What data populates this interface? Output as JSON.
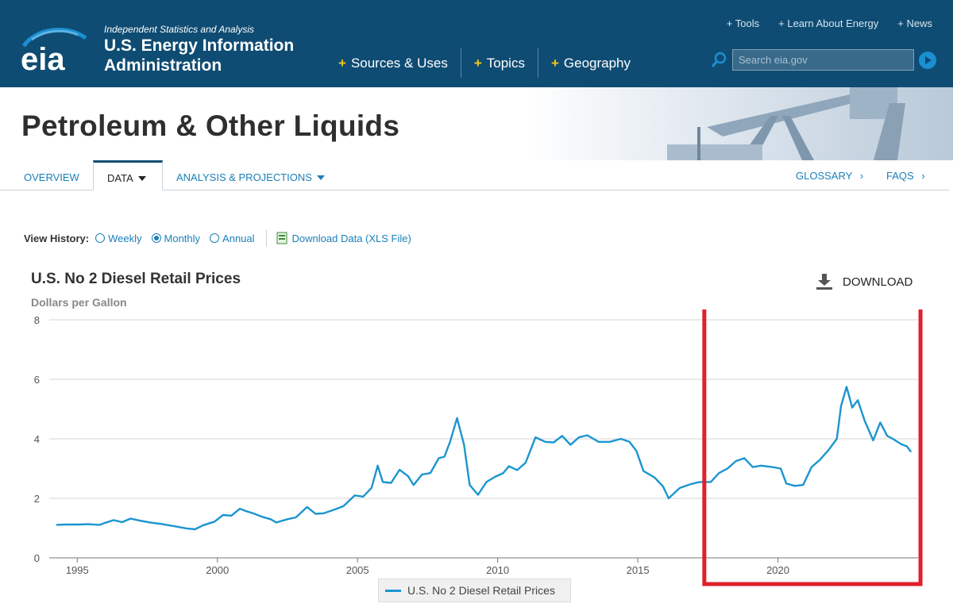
{
  "header": {
    "tagline": "Independent Statistics and Analysis",
    "agency_line1": "U.S. Energy Information",
    "agency_line2": "Administration",
    "logo_text": "eia",
    "nav": [
      "Sources & Uses",
      "Topics",
      "Geography"
    ],
    "util_nav": [
      "Tools",
      "Learn About Energy",
      "News"
    ],
    "search_placeholder": "Search eia.gov"
  },
  "banner": {
    "title": "Petroleum & Other Liquids"
  },
  "subnav": {
    "overview": "OVERVIEW",
    "data": "DATA",
    "analysis": "ANALYSIS & PROJECTIONS",
    "glossary": "GLOSSARY",
    "faqs": "FAQS",
    "chevron": "›"
  },
  "history": {
    "label": "View History:",
    "options": [
      "Weekly",
      "Monthly",
      "Annual"
    ],
    "selected": "Monthly",
    "download_link": "Download Data (XLS File)"
  },
  "download_button": "DOWNLOAD",
  "colors": {
    "header_bg": "#0f4c73",
    "series": "#1b95d0",
    "accent_plus": "#f5c518",
    "highlight_box": "#e0202b"
  },
  "chart_data": {
    "type": "line",
    "title": "U.S. No 2 Diesel Retail Prices",
    "ylabel": "Dollars per Gallon",
    "xlabel": "",
    "xlim": [
      1994.0,
      2025.0
    ],
    "ylim": [
      0,
      8
    ],
    "yticks": [
      0,
      2,
      4,
      6,
      8
    ],
    "xticks": [
      1995,
      2000,
      2005,
      2010,
      2015,
      2020
    ],
    "grid": "horizontal",
    "legend": "bottom-center",
    "highlight_region": [
      2017.6,
      2025.2
    ],
    "series": [
      {
        "name": "U.S. No 2 Diesel Retail Prices",
        "points": [
          [
            1994.25,
            1.11
          ],
          [
            1994.6,
            1.12
          ],
          [
            1995.0,
            1.12
          ],
          [
            1995.4,
            1.13
          ],
          [
            1995.8,
            1.11
          ],
          [
            1996.0,
            1.18
          ],
          [
            1996.3,
            1.27
          ],
          [
            1996.6,
            1.2
          ],
          [
            1996.9,
            1.32
          ],
          [
            1997.2,
            1.26
          ],
          [
            1997.6,
            1.19
          ],
          [
            1998.0,
            1.14
          ],
          [
            1998.5,
            1.06
          ],
          [
            1998.9,
            0.99
          ],
          [
            1999.2,
            0.96
          ],
          [
            1999.5,
            1.1
          ],
          [
            1999.9,
            1.22
          ],
          [
            2000.2,
            1.44
          ],
          [
            2000.5,
            1.42
          ],
          [
            2000.8,
            1.65
          ],
          [
            2001.0,
            1.58
          ],
          [
            2001.3,
            1.49
          ],
          [
            2001.6,
            1.38
          ],
          [
            2001.9,
            1.3
          ],
          [
            2002.1,
            1.19
          ],
          [
            2002.5,
            1.3
          ],
          [
            2002.8,
            1.36
          ],
          [
            2003.2,
            1.71
          ],
          [
            2003.5,
            1.48
          ],
          [
            2003.8,
            1.5
          ],
          [
            2004.2,
            1.63
          ],
          [
            2004.5,
            1.74
          ],
          [
            2004.9,
            2.1
          ],
          [
            2005.2,
            2.06
          ],
          [
            2005.5,
            2.35
          ],
          [
            2005.72,
            3.1
          ],
          [
            2005.9,
            2.55
          ],
          [
            2006.2,
            2.52
          ],
          [
            2006.5,
            2.96
          ],
          [
            2006.8,
            2.75
          ],
          [
            2007.0,
            2.45
          ],
          [
            2007.3,
            2.8
          ],
          [
            2007.6,
            2.85
          ],
          [
            2007.9,
            3.35
          ],
          [
            2008.1,
            3.4
          ],
          [
            2008.3,
            3.9
          ],
          [
            2008.55,
            4.7
          ],
          [
            2008.8,
            3.8
          ],
          [
            2009.0,
            2.45
          ],
          [
            2009.3,
            2.12
          ],
          [
            2009.6,
            2.55
          ],
          [
            2009.9,
            2.72
          ],
          [
            2010.2,
            2.85
          ],
          [
            2010.4,
            3.08
          ],
          [
            2010.7,
            2.95
          ],
          [
            2011.0,
            3.2
          ],
          [
            2011.35,
            4.05
          ],
          [
            2011.7,
            3.9
          ],
          [
            2012.0,
            3.88
          ],
          [
            2012.3,
            4.1
          ],
          [
            2012.6,
            3.8
          ],
          [
            2012.9,
            4.05
          ],
          [
            2013.2,
            4.12
          ],
          [
            2013.6,
            3.9
          ],
          [
            2014.0,
            3.9
          ],
          [
            2014.4,
            4.0
          ],
          [
            2014.7,
            3.9
          ],
          [
            2014.95,
            3.6
          ],
          [
            2015.2,
            2.92
          ],
          [
            2015.6,
            2.7
          ],
          [
            2015.9,
            2.4
          ],
          [
            2016.1,
            2.0
          ],
          [
            2016.5,
            2.35
          ],
          [
            2016.9,
            2.48
          ],
          [
            2017.2,
            2.55
          ],
          [
            2017.6,
            2.55
          ],
          [
            2017.9,
            2.85
          ],
          [
            2018.2,
            3.0
          ],
          [
            2018.5,
            3.25
          ],
          [
            2018.8,
            3.35
          ],
          [
            2019.1,
            3.05
          ],
          [
            2019.4,
            3.1
          ],
          [
            2019.8,
            3.05
          ],
          [
            2020.1,
            3.0
          ],
          [
            2020.3,
            2.5
          ],
          [
            2020.6,
            2.42
          ],
          [
            2020.9,
            2.45
          ],
          [
            2021.2,
            3.05
          ],
          [
            2021.5,
            3.3
          ],
          [
            2021.8,
            3.62
          ],
          [
            2022.1,
            4.0
          ],
          [
            2022.25,
            5.1
          ],
          [
            2022.45,
            5.75
          ],
          [
            2022.65,
            5.05
          ],
          [
            2022.85,
            5.3
          ],
          [
            2023.1,
            4.6
          ],
          [
            2023.4,
            3.95
          ],
          [
            2023.65,
            4.55
          ],
          [
            2023.9,
            4.1
          ],
          [
            2024.1,
            4.0
          ],
          [
            2024.4,
            3.82
          ],
          [
            2024.6,
            3.75
          ],
          [
            2024.75,
            3.56
          ]
        ]
      }
    ]
  }
}
